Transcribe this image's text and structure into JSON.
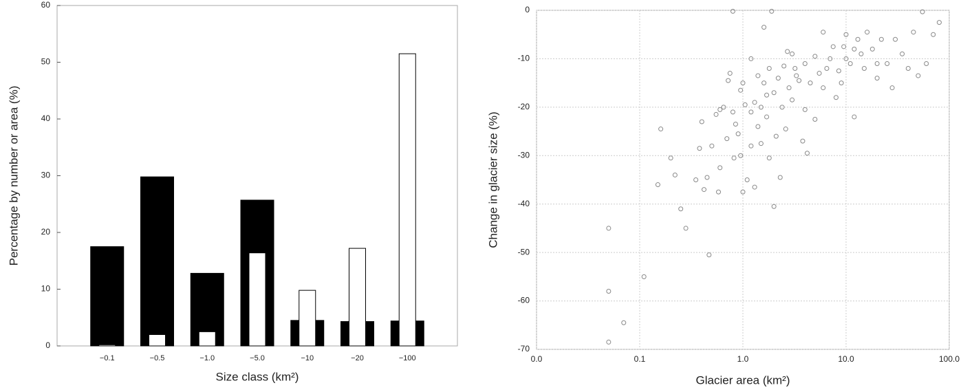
{
  "chart_data": [
    {
      "type": "bar",
      "xlabel": "Size class (km²)",
      "ylabel": "Percentage by number or area (%)",
      "categories": [
        "−0.1",
        "−0.5",
        "−1.0",
        "−5.0",
        "−10",
        "−20",
        "−100"
      ],
      "series": [
        {
          "color": "#000000",
          "values": [
            17.5,
            29.8,
            12.8,
            25.7,
            4.5,
            4.3,
            4.4
          ]
        },
        {
          "color": "#ffffff",
          "values": [
            0.2,
            2.0,
            2.5,
            16.4,
            9.8,
            17.2,
            51.5
          ]
        }
      ],
      "ylim": [
        0,
        60
      ],
      "yticks": [
        0,
        10,
        20,
        30,
        40,
        50,
        60
      ],
      "grid": false
    },
    {
      "type": "scatter",
      "xlabel": "Glacier area (km²)",
      "ylabel": "Change in glacier size (%)",
      "xscale": "log",
      "color": "#888888",
      "x": [
        0.05,
        0.05,
        0.05,
        0.07,
        0.11,
        0.15,
        0.16,
        0.2,
        0.22,
        0.25,
        0.28,
        0.35,
        0.38,
        0.4,
        0.42,
        0.45,
        0.47,
        0.5,
        0.55,
        0.58,
        0.6,
        0.6,
        0.65,
        0.7,
        0.72,
        0.75,
        0.8,
        0.8,
        0.82,
        0.85,
        0.9,
        0.95,
        0.95,
        1.0,
        1.0,
        1.05,
        1.1,
        1.2,
        1.2,
        1.3,
        1.3,
        1.4,
        1.4,
        1.5,
        1.5,
        1.6,
        1.6,
        1.7,
        1.8,
        1.8,
        1.9,
        2.0,
        2.0,
        2.1,
        2.2,
        2.3,
        2.4,
        2.5,
        2.6,
        2.8,
        3.0,
        3.0,
        3.2,
        3.5,
        3.8,
        4.0,
        4.0,
        4.2,
        4.5,
        5.0,
        5.0,
        5.5,
        6.0,
        6.0,
        7.0,
        7.5,
        8.0,
        8.5,
        9.0,
        10.0,
        10.0,
        11,
        12,
        12,
        13,
        15,
        16,
        18,
        20,
        22,
        25,
        28,
        30,
        40,
        45,
        50,
        55,
        60,
        70,
        80,
        1.2,
        1.7,
        2.7,
        3.3,
        6.5,
        9.5,
        14,
        20,
        35
      ],
      "values": [
        -45,
        -58,
        -68.5,
        -64.5,
        -55,
        -36,
        -24.5,
        -30.5,
        -34,
        -41,
        -45,
        -35,
        -28.5,
        -23,
        -37,
        -34.5,
        -50.5,
        -28,
        -21.5,
        -37.5,
        -20.5,
        -32.5,
        -20,
        -26.5,
        -14.5,
        -13,
        -0.2,
        -21,
        -30.5,
        -23.5,
        -25.5,
        -30,
        -16.5,
        -15,
        -37.5,
        -19.5,
        -35,
        -10,
        -28,
        -19,
        -36.5,
        -13.5,
        -24,
        -20,
        -27.5,
        -3.5,
        -15,
        -22,
        -30.5,
        -12,
        -0.2,
        -40.5,
        -17,
        -26,
        -14,
        -34.5,
        -20,
        -11.5,
        -24.5,
        -16,
        -9,
        -18.5,
        -12,
        -14.5,
        -27,
        -20.5,
        -11,
        -29.5,
        -15,
        -9.5,
        -22.5,
        -13,
        -4.5,
        -16,
        -10,
        -7.5,
        -18,
        -12.5,
        -15,
        -10,
        -5,
        -11,
        -22,
        -8,
        -6,
        -12,
        -4.5,
        -8,
        -14,
        -6,
        -11,
        -16,
        -6,
        -12,
        -4.5,
        -13.5,
        -0.3,
        -11,
        -5,
        -2.5,
        -21,
        -17.5,
        -8.5,
        -13.5,
        -12,
        -7.5,
        -9,
        -11,
        -9
      ],
      "xlim": [
        0.01,
        100
      ],
      "xticks": [
        {
          "value": 0.01,
          "label": "0.0"
        },
        0.1,
        {
          "value": 1,
          "label": "1.0"
        },
        {
          "value": 10,
          "label": "10.0"
        },
        {
          "value": 100,
          "label": "100.0"
        }
      ],
      "ylim": [
        -70,
        0
      ],
      "yticks": [
        -70,
        -60,
        -50,
        -40,
        -30,
        -20,
        -10,
        0
      ],
      "grid": true
    }
  ]
}
